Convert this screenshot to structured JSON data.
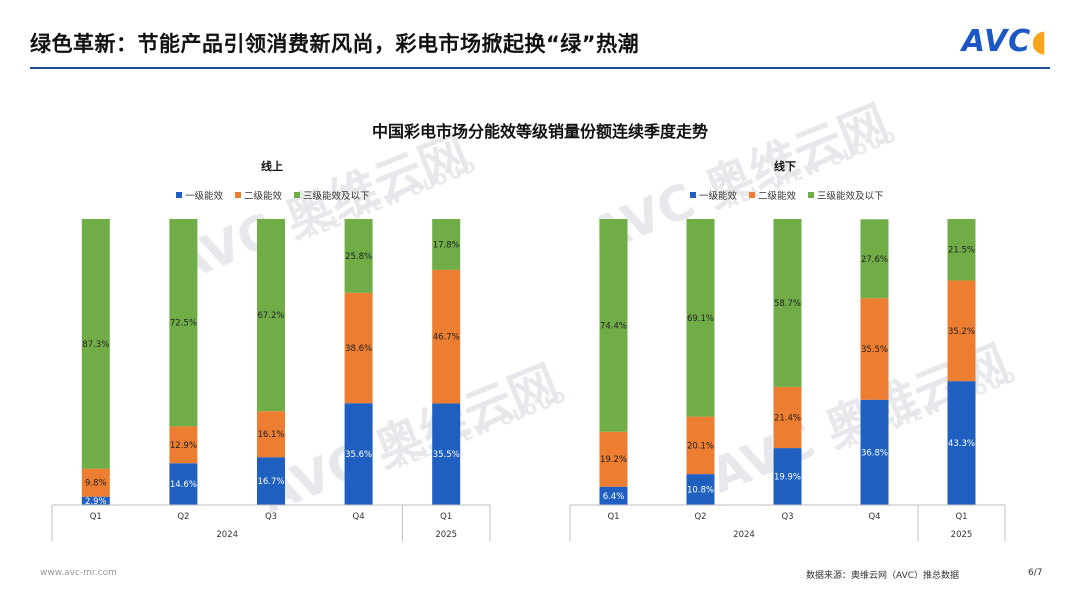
{
  "header": {
    "title": "绿色革新：节能产品引领消费新风尚，彩电市场掀起换“绿”热潮",
    "logo_text": "AVC"
  },
  "watermark": {
    "text": "AVC 奥维云网",
    "sub": "ALL VIEW CLOUD"
  },
  "footer": {
    "website": "www.avc-mr.com",
    "source": "数据来源：奥维云网（AVC）推总数据",
    "page": "6/7"
  },
  "colors": {
    "level1": "#1f5fc0",
    "level2": "#ed7d31",
    "level3": "#70ad47",
    "rule": "#1f4e9b"
  },
  "chart_data": [
    {
      "type": "bar",
      "stacked": true,
      "title": "中国彩电市场分能效等级销量份额连续季度走势",
      "subtitle": "线上",
      "legend": [
        "一级能效",
        "二级能效",
        "三级能效及以下"
      ],
      "legend_position": "top",
      "categories": [
        "Q1",
        "Q2",
        "Q3",
        "Q4",
        "Q1"
      ],
      "groups": [
        {
          "label": "2024",
          "span": 4
        },
        {
          "label": "2025",
          "span": 1
        }
      ],
      "series": [
        {
          "name": "一级能效",
          "values": [
            2.9,
            14.6,
            16.7,
            35.6,
            35.5
          ]
        },
        {
          "name": "二级能效",
          "values": [
            9.8,
            12.9,
            16.1,
            38.6,
            46.7
          ]
        },
        {
          "name": "三级能效及以下",
          "values": [
            87.3,
            72.5,
            67.2,
            25.8,
            17.8
          ]
        }
      ],
      "labels": [
        [
          "2.9%",
          "14.6%",
          "16.7%",
          "35.6%",
          "35.5%"
        ],
        [
          "9.8%",
          "12.9%",
          "16.1%",
          "38.6%",
          "46.7%"
        ],
        [
          "87.3%",
          "72.5%",
          "67.2%",
          "25.8%",
          "17.8%"
        ]
      ],
      "ylim": [
        0,
        100
      ]
    },
    {
      "type": "bar",
      "stacked": true,
      "subtitle": "线下",
      "legend": [
        "一级能效",
        "二级能效",
        "三级能效及以下"
      ],
      "legend_position": "top",
      "categories": [
        "Q1",
        "Q2",
        "Q3",
        "Q4",
        "Q1"
      ],
      "groups": [
        {
          "label": "2024",
          "span": 4
        },
        {
          "label": "2025",
          "span": 1
        }
      ],
      "series": [
        {
          "name": "一级能效",
          "values": [
            6.4,
            10.8,
            19.9,
            36.8,
            43.3
          ]
        },
        {
          "name": "二级能效",
          "values": [
            19.2,
            20.1,
            21.4,
            35.5,
            35.2
          ]
        },
        {
          "name": "三级能效及以下",
          "values": [
            74.4,
            69.1,
            58.7,
            27.6,
            21.5
          ]
        }
      ],
      "labels": [
        [
          "6.4%",
          "10.8%",
          "19.9%",
          "36.8%",
          "43.3%"
        ],
        [
          "19.2%",
          "20.1%",
          "21.4%",
          "35.5%",
          "35.2%"
        ],
        [
          "74.4%",
          "69.1%",
          "58.7%",
          "27.6%",
          "21.5%"
        ]
      ],
      "ylim": [
        0,
        100
      ]
    }
  ]
}
